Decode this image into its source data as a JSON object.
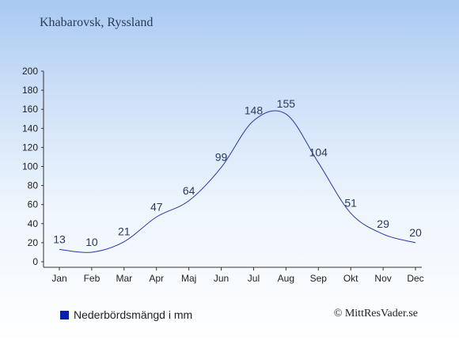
{
  "title": "Khabarovsk, Ryssland",
  "legend": {
    "label": "Nederbördsmängd i mm",
    "color": "#0a1fa8"
  },
  "copyright": "© MittResVader.se",
  "colors": {
    "line": "#2b36a8",
    "axis": "#333333"
  },
  "chart_data": {
    "type": "line",
    "categories": [
      "Jan",
      "Feb",
      "Mar",
      "Apr",
      "Maj",
      "Jun",
      "Jul",
      "Aug",
      "Sep",
      "Okt",
      "Nov",
      "Dec"
    ],
    "series": [
      {
        "name": "Nederbördsmängd i mm",
        "values": [
          13,
          10,
          21,
          47,
          64,
          99,
          148,
          155,
          104,
          51,
          29,
          20
        ]
      }
    ],
    "data_labels": [
      "13",
      "10",
      "21",
      "47",
      "64",
      "99",
      "148",
      "155",
      "104",
      "51",
      "29",
      "20"
    ],
    "y_ticks": [
      0,
      20,
      40,
      60,
      80,
      100,
      120,
      140,
      160,
      180,
      200
    ],
    "ylim": [
      0,
      200
    ],
    "grid": false,
    "legend_position": "bottom-left"
  }
}
